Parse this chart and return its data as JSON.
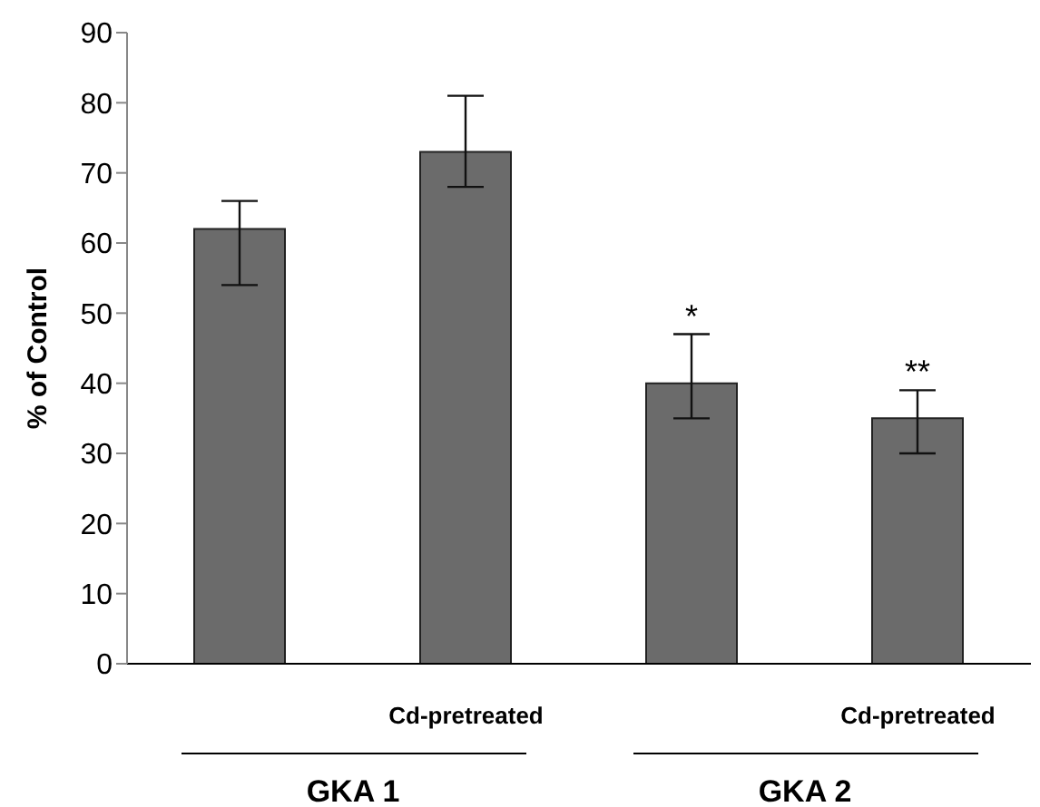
{
  "chart_data": {
    "type": "bar",
    "ylabel": "% of Control",
    "categories": [
      null,
      "Cd-pretreated",
      null,
      "Cd-pretreated"
    ],
    "values": [
      62,
      73,
      40,
      35
    ],
    "errors": [
      [
        54,
        66
      ],
      [
        68,
        81
      ],
      [
        35,
        47
      ],
      [
        30,
        39
      ]
    ],
    "value_labels": [
      null,
      null,
      "*",
      "**"
    ],
    "color": "#6b6b6b",
    "ylim": [
      0,
      90
    ],
    "yticks": [
      0,
      10,
      20,
      30,
      40,
      50,
      60,
      70,
      80,
      90
    ],
    "grid": false,
    "legend": false,
    "annotations": [
      "GKA 1",
      "GKA 2"
    ]
  }
}
